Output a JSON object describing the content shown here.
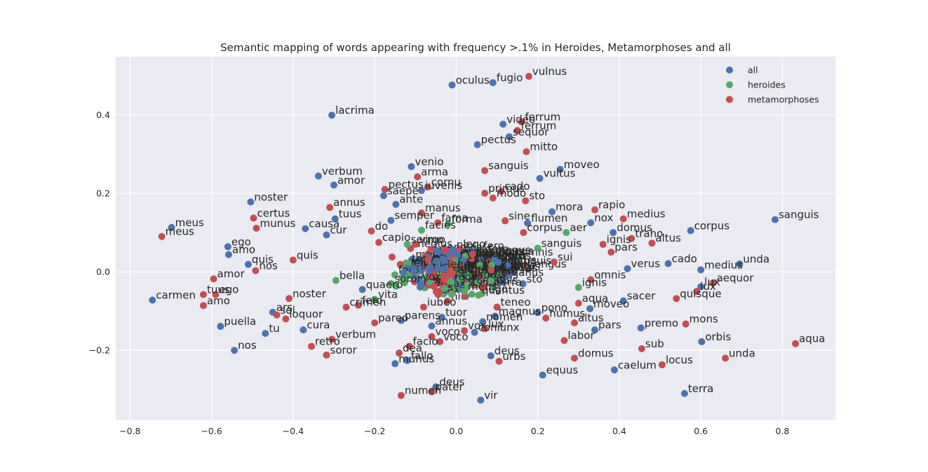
{
  "chart_data": {
    "type": "scatter",
    "title": "Semantic mapping of words appearing with frequency >.1% in Heroides, Metamorphoses and all",
    "xlabel": "",
    "ylabel": "",
    "xlim": [
      -0.835,
      0.93
    ],
    "ylim": [
      -0.378,
      0.548
    ],
    "xticks": [
      -0.8,
      -0.6,
      -0.4,
      -0.2,
      0.0,
      0.2,
      0.4,
      0.6,
      0.8
    ],
    "xtick_labels": [
      "−0.8",
      "−0.6",
      "−0.4",
      "−0.2",
      "0.0",
      "0.2",
      "0.4",
      "0.6",
      "0.8"
    ],
    "yticks": [
      -0.2,
      0.0,
      0.2,
      0.4
    ],
    "ytick_labels": [
      "−0.2",
      "0.0",
      "0.2",
      "0.4"
    ],
    "grid": true,
    "legend_position": "top-right",
    "series": [
      {
        "name": "all",
        "color": "#4c72b0",
        "points": [
          {
            "x": -0.01,
            "y": 0.476,
            "label": "oculus"
          },
          {
            "x": 0.09,
            "y": 0.482,
            "label": "fugio"
          },
          {
            "x": -0.305,
            "y": 0.399,
            "label": "lacrima"
          },
          {
            "x": 0.115,
            "y": 0.376,
            "label": "video"
          },
          {
            "x": 0.13,
            "y": 0.344,
            "label": "sequor"
          },
          {
            "x": 0.052,
            "y": 0.324,
            "label": "pectus"
          },
          {
            "x": -0.11,
            "y": 0.268,
            "label": "venio"
          },
          {
            "x": 0.255,
            "y": 0.261,
            "label": "moveo"
          },
          {
            "x": -0.338,
            "y": 0.244,
            "label": "verbum"
          },
          {
            "x": 0.205,
            "y": 0.238,
            "label": "vultus"
          },
          {
            "x": -0.3,
            "y": 0.221,
            "label": "amor"
          },
          {
            "x": -0.178,
            "y": 0.194,
            "label": "saepe"
          },
          {
            "x": -0.504,
            "y": 0.178,
            "label": "noster"
          },
          {
            "x": -0.148,
            "y": 0.172,
            "label": "ante"
          },
          {
            "x": -0.085,
            "y": 0.207,
            "label": "iuvenis"
          },
          {
            "x": 0.235,
            "y": 0.153,
            "label": "mora"
          },
          {
            "x": -0.698,
            "y": 0.113,
            "label": "meus"
          },
          {
            "x": -0.297,
            "y": 0.135,
            "label": "tuus"
          },
          {
            "x": -0.16,
            "y": 0.131,
            "label": "semper"
          },
          {
            "x": 0.175,
            "y": 0.124,
            "label": "flumen"
          },
          {
            "x": 0.33,
            "y": 0.125,
            "label": "nox"
          },
          {
            "x": 0.782,
            "y": 0.133,
            "label": "sanguis"
          },
          {
            "x": -0.37,
            "y": 0.11,
            "label": "causa"
          },
          {
            "x": 0.385,
            "y": 0.1,
            "label": "domus"
          },
          {
            "x": 0.575,
            "y": 0.105,
            "label": "corpus"
          },
          {
            "x": -0.318,
            "y": 0.094,
            "label": "cur"
          },
          {
            "x": -0.56,
            "y": 0.064,
            "label": "ego"
          },
          {
            "x": -0.558,
            "y": 0.044,
            "label": "amo"
          },
          {
            "x": -0.51,
            "y": 0.019,
            "label": "quis"
          },
          {
            "x": 0.52,
            "y": 0.021,
            "label": "cado"
          },
          {
            "x": 0.695,
            "y": 0.02,
            "label": "unda"
          },
          {
            "x": 0.42,
            "y": 0.008,
            "label": "verus"
          },
          {
            "x": 0.6,
            "y": 0.005,
            "label": "medius"
          },
          {
            "x": -0.745,
            "y": -0.072,
            "label": "carmen"
          },
          {
            "x": -0.578,
            "y": -0.139,
            "label": "puella"
          },
          {
            "x": -0.468,
            "y": -0.157,
            "label": "tu"
          },
          {
            "x": -0.544,
            "y": -0.2,
            "label": "nos"
          },
          {
            "x": -0.45,
            "y": -0.103,
            "label": "ars"
          },
          {
            "x": -0.375,
            "y": -0.148,
            "label": "cura"
          },
          {
            "x": -0.135,
            "y": -0.124,
            "label": "parens"
          },
          {
            "x": -0.06,
            "y": -0.138,
            "label": "annus"
          },
          {
            "x": 0.065,
            "y": -0.127,
            "label": "nomen"
          },
          {
            "x": 0.045,
            "y": -0.154,
            "label": "coniunx"
          },
          {
            "x": 0.41,
            "y": -0.074,
            "label": "sacer"
          },
          {
            "x": 0.453,
            "y": -0.143,
            "label": "premo"
          },
          {
            "x": 0.34,
            "y": -0.148,
            "label": "pars"
          },
          {
            "x": 0.602,
            "y": -0.178,
            "label": "orbis"
          },
          {
            "x": 0.085,
            "y": -0.214,
            "label": "deus"
          },
          {
            "x": -0.15,
            "y": -0.234,
            "label": "munus"
          },
          {
            "x": -0.12,
            "y": -0.226,
            "label": "fallo"
          },
          {
            "x": 0.212,
            "y": -0.263,
            "label": "equus"
          },
          {
            "x": 0.388,
            "y": -0.25,
            "label": "caelum"
          },
          {
            "x": 0.56,
            "y": -0.31,
            "label": "terra"
          },
          {
            "x": -0.05,
            "y": -0.293,
            "label": "deus"
          },
          {
            "x": 0.06,
            "y": -0.327,
            "label": "vir"
          },
          {
            "x": -0.035,
            "y": -0.116,
            "label": "tuor"
          },
          {
            "x": 0.2,
            "y": -0.104,
            "label": "pono"
          },
          {
            "x": 0.6,
            "y": -0.038,
            "label": "lux"
          },
          {
            "x": 0.328,
            "y": -0.094,
            "label": "moveo"
          },
          {
            "x": 0.095,
            "y": -0.113,
            "label": "magnus"
          },
          {
            "x": -0.23,
            "y": -0.045,
            "label": "quaero"
          }
        ]
      },
      {
        "name": "heroides",
        "color": "#55a868",
        "points": [
          {
            "x": -0.085,
            "y": 0.106,
            "label": "facies"
          },
          {
            "x": 0.27,
            "y": 0.1,
            "label": "aer"
          },
          {
            "x": -0.295,
            "y": -0.022,
            "label": "bella"
          },
          {
            "x": -0.12,
            "y": 0.07,
            "label": "sermo"
          },
          {
            "x": -0.16,
            "y": -0.03,
            "label": "soror"
          },
          {
            "x": 0.2,
            "y": 0.06,
            "label": "sanguis"
          },
          {
            "x": -0.02,
            "y": 0.122,
            "label": "forma"
          },
          {
            "x": 0.3,
            "y": -0.04,
            "label": "ignis"
          },
          {
            "x": -0.2,
            "y": -0.07,
            "label": "vita"
          },
          {
            "x": 0.02,
            "y": -0.05,
            "label": "mens"
          }
        ]
      },
      {
        "name": "metamorphoses",
        "color": "#c44e52",
        "points": [
          {
            "x": 0.178,
            "y": 0.498,
            "label": "vulnus"
          },
          {
            "x": 0.16,
            "y": 0.382,
            "label": "ferrum"
          },
          {
            "x": 0.172,
            "y": 0.306,
            "label": "mitto"
          },
          {
            "x": 0.07,
            "y": 0.258,
            "label": "sanguis"
          },
          {
            "x": -0.095,
            "y": 0.242,
            "label": "arma"
          },
          {
            "x": -0.07,
            "y": 0.216,
            "label": "cornu"
          },
          {
            "x": 0.11,
            "y": 0.205,
            "label": "cado"
          },
          {
            "x": 0.17,
            "y": 0.181,
            "label": "sto"
          },
          {
            "x": 0.34,
            "y": 0.158,
            "label": "rapio"
          },
          {
            "x": 0.41,
            "y": 0.135,
            "label": "medius"
          },
          {
            "x": -0.31,
            "y": 0.164,
            "label": "annus"
          },
          {
            "x": -0.497,
            "y": 0.137,
            "label": "certus"
          },
          {
            "x": -0.49,
            "y": 0.111,
            "label": "munus"
          },
          {
            "x": -0.722,
            "y": 0.09,
            "label": "meus"
          },
          {
            "x": -0.208,
            "y": 0.104,
            "label": "do"
          },
          {
            "x": -0.4,
            "y": 0.03,
            "label": "quis"
          },
          {
            "x": -0.492,
            "y": 0.003,
            "label": "nos"
          },
          {
            "x": -0.595,
            "y": -0.018,
            "label": "amor"
          },
          {
            "x": -0.59,
            "y": -0.058,
            "label": "ego"
          },
          {
            "x": -0.62,
            "y": -0.058,
            "label": "tuus"
          },
          {
            "x": -0.62,
            "y": -0.086,
            "label": "amo"
          },
          {
            "x": -0.41,
            "y": -0.068,
            "label": "noster"
          },
          {
            "x": -0.418,
            "y": -0.12,
            "label": "loquor"
          },
          {
            "x": -0.44,
            "y": -0.11,
            "label": "sol"
          },
          {
            "x": -0.305,
            "y": -0.172,
            "label": "verbum"
          },
          {
            "x": -0.355,
            "y": -0.19,
            "label": "retro"
          },
          {
            "x": -0.318,
            "y": -0.212,
            "label": "soror"
          },
          {
            "x": -0.115,
            "y": -0.19,
            "label": "facio"
          },
          {
            "x": -0.14,
            "y": -0.207,
            "label": "dea"
          },
          {
            "x": -0.04,
            "y": -0.178,
            "label": "voco"
          },
          {
            "x": 0.105,
            "y": -0.228,
            "label": "urbs"
          },
          {
            "x": -0.135,
            "y": -0.315,
            "label": "numen"
          },
          {
            "x": -0.06,
            "y": -0.306,
            "label": "pater"
          },
          {
            "x": 0.265,
            "y": -0.175,
            "label": "labor"
          },
          {
            "x": 0.29,
            "y": -0.22,
            "label": "domus"
          },
          {
            "x": 0.455,
            "y": -0.196,
            "label": "sub"
          },
          {
            "x": 0.505,
            "y": -0.237,
            "label": "locus"
          },
          {
            "x": 0.563,
            "y": -0.133,
            "label": "mons"
          },
          {
            "x": 0.66,
            "y": -0.22,
            "label": "unda"
          },
          {
            "x": 0.832,
            "y": -0.183,
            "label": "aqua"
          },
          {
            "x": 0.54,
            "y": -0.068,
            "label": "quisque"
          },
          {
            "x": 0.59,
            "y": -0.05,
            "label": "lux"
          },
          {
            "x": 0.63,
            "y": -0.028,
            "label": "aequor"
          },
          {
            "x": 0.48,
            "y": 0.073,
            "label": "altus"
          },
          {
            "x": 0.43,
            "y": 0.085,
            "label": "traho"
          },
          {
            "x": -0.175,
            "y": 0.21,
            "label": "pectus"
          },
          {
            "x": 0.07,
            "y": 0.2,
            "label": "primus"
          },
          {
            "x": 0.09,
            "y": 0.188,
            "label": "modo"
          },
          {
            "x": -0.085,
            "y": 0.15,
            "label": "manus"
          },
          {
            "x": -0.045,
            "y": 0.125,
            "label": "fama"
          },
          {
            "x": 0.12,
            "y": 0.13,
            "label": "sine"
          },
          {
            "x": 0.165,
            "y": 0.1,
            "label": "corpus"
          },
          {
            "x": -0.1,
            "y": 0.07,
            "label": "virgo"
          },
          {
            "x": -0.19,
            "y": 0.075,
            "label": "capio"
          },
          {
            "x": 0.04,
            "y": 0.045,
            "label": "ille"
          },
          {
            "x": 0.24,
            "y": 0.025,
            "label": "sui"
          },
          {
            "x": 0.36,
            "y": 0.07,
            "label": "ignis"
          },
          {
            "x": 0.38,
            "y": 0.05,
            "label": "pars"
          },
          {
            "x": 0.33,
            "y": -0.02,
            "label": "omnis"
          },
          {
            "x": 0.29,
            "y": -0.13,
            "label": "altus"
          },
          {
            "x": 0.22,
            "y": -0.118,
            "label": "humus"
          },
          {
            "x": 0.3,
            "y": -0.08,
            "label": "aqua"
          },
          {
            "x": 0.1,
            "y": -0.09,
            "label": "teneo"
          },
          {
            "x": -0.08,
            "y": -0.09,
            "label": "iubeo"
          },
          {
            "x": -0.24,
            "y": -0.085,
            "label": "fero"
          },
          {
            "x": -0.27,
            "y": -0.09,
            "label": "crimen"
          },
          {
            "x": -0.2,
            "y": -0.13,
            "label": "pareo"
          },
          {
            "x": -0.06,
            "y": -0.165,
            "label": "voco"
          },
          {
            "x": 0.02,
            "y": -0.15,
            "label": "vox"
          },
          {
            "x": 0.07,
            "y": -0.145,
            "label": "lux"
          },
          {
            "x": 0.15,
            "y": 0.36,
            "label": "ferrum"
          }
        ]
      }
    ],
    "dense_cluster_labels": [
      "sanguis",
      "ignis",
      "saxa",
      "sum",
      "volo",
      "do",
      "fero",
      "tango",
      "rego",
      "gero",
      "lego",
      "video",
      "sto",
      "quaero",
      "magnus",
      "deus",
      "pars",
      "altus",
      "longus",
      "corpus",
      "verus",
      "primus",
      "medius",
      "nomen",
      "ille",
      "iste",
      "hic",
      "aqua",
      "terra",
      "locus",
      "nox",
      "dies",
      "manus",
      "pectus",
      "omnis",
      "solus",
      "primus",
      "posse",
      "modo",
      "tantus",
      "quantus",
      "res",
      "vox",
      "sol"
    ]
  }
}
